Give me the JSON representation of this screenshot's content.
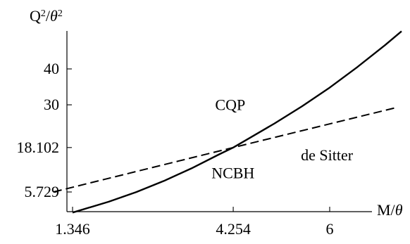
{
  "chart_data": {
    "type": "line",
    "title": "",
    "ylabel": {
      "base": "Q",
      "sup1": "2",
      "slash": "/",
      "theta": "θ",
      "sup2": "2"
    },
    "xlabel": {
      "base": "M/",
      "theta": "θ"
    },
    "xlim": [
      1.0,
      7.4
    ],
    "ylim": [
      0,
      52
    ],
    "x_ticks": [
      {
        "value": 1.346,
        "label": "1.346"
      },
      {
        "value": 4.254,
        "label": "4.254"
      },
      {
        "value": 6,
        "label": "6"
      }
    ],
    "y_ticks": [
      {
        "value": 5.729,
        "label": "5.729"
      },
      {
        "value": 18.102,
        "label": "18.102"
      },
      {
        "value": 30,
        "label": "30"
      },
      {
        "value": 40,
        "label": "40"
      }
    ],
    "series": [
      {
        "style": "solid",
        "x": [
          1.346,
          2.0,
          2.5,
          3.0,
          3.5,
          4.0,
          4.254,
          4.5,
          5.0,
          5.5,
          6.0,
          6.5,
          7.0,
          7.3
        ],
        "y": [
          0,
          3.0,
          5.7,
          8.8,
          12.3,
          16.2,
          18.102,
          20.3,
          24.8,
          29.6,
          34.8,
          40.5,
          46.6,
          50.5
        ]
      },
      {
        "style": "dashed",
        "x": [
          1.0,
          4.254,
          7.2
        ],
        "y": [
          5.729,
          18.102,
          29.2
        ]
      }
    ],
    "annotations": [
      {
        "text": "CQP",
        "x": 4.2,
        "y": 28.5
      },
      {
        "text": "de Sitter",
        "x": 5.95,
        "y": 14.5
      },
      {
        "text": "NCBH",
        "x": 4.25,
        "y": 9.5
      }
    ],
    "grid": false,
    "legend": "none"
  }
}
